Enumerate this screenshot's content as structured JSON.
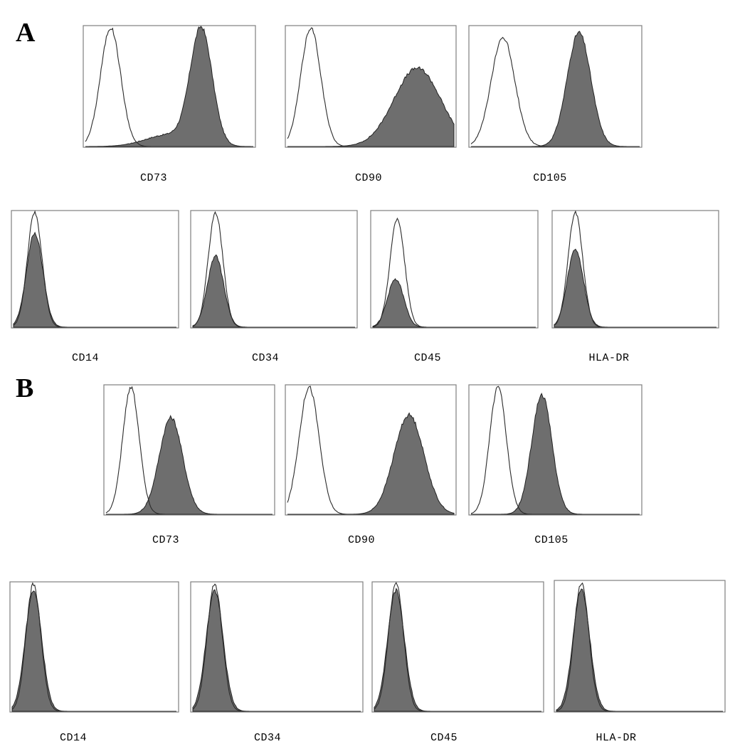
{
  "panels": [
    {
      "letter": "A",
      "chart_data": [
        {
          "type": "area",
          "title": "CD73",
          "xlabel": "CD73",
          "x_range": [
            0,
            1
          ],
          "y_range": [
            0,
            1
          ],
          "series": [
            {
              "role": "control",
              "fill": "none",
              "peaks": [
                {
                  "mu": 0.15,
                  "sigma": 0.06,
                  "height": 1.0
                }
              ]
            },
            {
              "role": "stained",
              "fill": "#6e6e6e",
              "peaks": [
                {
                  "mu": 0.69,
                  "sigma": 0.065,
                  "height": 0.97
                },
                {
                  "mu": 0.5,
                  "sigma": 0.14,
                  "height": 0.1
                }
              ]
            }
          ]
        },
        {
          "type": "area",
          "title": "CD90",
          "xlabel": "CD90",
          "x_range": [
            0,
            1
          ],
          "y_range": [
            0,
            1
          ],
          "series": [
            {
              "role": "control",
              "fill": "none",
              "peaks": [
                {
                  "mu": 0.14,
                  "sigma": 0.06,
                  "height": 1.0
                }
              ]
            },
            {
              "role": "stained",
              "fill": "#6e6e6e",
              "peaks": [
                {
                  "mu": 0.78,
                  "sigma": 0.14,
                  "height": 0.66
                }
              ]
            }
          ]
        },
        {
          "type": "area",
          "title": "CD105",
          "xlabel": "CD105",
          "x_range": [
            0,
            1
          ],
          "y_range": [
            0,
            1
          ],
          "series": [
            {
              "role": "control",
              "fill": "none",
              "peaks": [
                {
                  "mu": 0.19,
                  "sigma": 0.07,
                  "height": 0.92
                }
              ]
            },
            {
              "role": "stained",
              "fill": "#6e6e6e",
              "peaks": [
                {
                  "mu": 0.64,
                  "sigma": 0.07,
                  "height": 0.96
                }
              ]
            }
          ]
        },
        {
          "type": "area",
          "title": "CD14",
          "xlabel": "CD14",
          "x_range": [
            0,
            1
          ],
          "y_range": [
            0,
            1
          ],
          "series": [
            {
              "role": "control",
              "fill": "none",
              "peaks": [
                {
                  "mu": 0.13,
                  "sigma": 0.045,
                  "height": 1.0
                }
              ]
            },
            {
              "role": "stained",
              "fill": "#6e6e6e",
              "peaks": [
                {
                  "mu": 0.13,
                  "sigma": 0.05,
                  "height": 0.82
                }
              ]
            }
          ]
        },
        {
          "type": "area",
          "title": "CD34",
          "xlabel": "CD34",
          "x_range": [
            0,
            1
          ],
          "y_range": [
            0,
            1
          ],
          "series": [
            {
              "role": "control",
              "fill": "none",
              "peaks": [
                {
                  "mu": 0.14,
                  "sigma": 0.045,
                  "height": 1.0
                }
              ]
            },
            {
              "role": "stained",
              "fill": "#6e6e6e",
              "peaks": [
                {
                  "mu": 0.14,
                  "sigma": 0.05,
                  "height": 0.62
                }
              ]
            }
          ]
        },
        {
          "type": "area",
          "title": "CD45",
          "xlabel": "CD45",
          "x_range": [
            0,
            1
          ],
          "y_range": [
            0,
            1
          ],
          "series": [
            {
              "role": "control",
              "fill": "none",
              "peaks": [
                {
                  "mu": 0.15,
                  "sigma": 0.045,
                  "height": 0.95
                }
              ]
            },
            {
              "role": "stained",
              "fill": "#6e6e6e",
              "peaks": [
                {
                  "mu": 0.14,
                  "sigma": 0.05,
                  "height": 0.42
                }
              ]
            }
          ]
        },
        {
          "type": "area",
          "title": "HLA-DR",
          "xlabel": "HLA-DR",
          "x_range": [
            0,
            1
          ],
          "y_range": [
            0,
            1
          ],
          "series": [
            {
              "role": "control",
              "fill": "none",
              "peaks": [
                {
                  "mu": 0.13,
                  "sigma": 0.045,
                  "height": 1.0
                }
              ]
            },
            {
              "role": "stained",
              "fill": "#6e6e6e",
              "peaks": [
                {
                  "mu": 0.13,
                  "sigma": 0.05,
                  "height": 0.68
                }
              ]
            }
          ]
        }
      ]
    },
    {
      "letter": "B",
      "chart_data": [
        {
          "type": "area",
          "title": "CD73",
          "xlabel": "CD73",
          "x_range": [
            0,
            1
          ],
          "y_range": [
            0,
            1
          ],
          "series": [
            {
              "role": "control",
              "fill": "none",
              "peaks": [
                {
                  "mu": 0.15,
                  "sigma": 0.05,
                  "height": 1.0
                }
              ]
            },
            {
              "role": "stained",
              "fill": "#6e6e6e",
              "peaks": [
                {
                  "mu": 0.39,
                  "sigma": 0.07,
                  "height": 0.76
                }
              ]
            }
          ]
        },
        {
          "type": "area",
          "title": "CD90",
          "xlabel": "CD90",
          "x_range": [
            0,
            1
          ],
          "y_range": [
            0,
            1
          ],
          "series": [
            {
              "role": "control",
              "fill": "none",
              "peaks": [
                {
                  "mu": 0.13,
                  "sigma": 0.06,
                  "height": 1.0
                }
              ]
            },
            {
              "role": "stained",
              "fill": "#6e6e6e",
              "peaks": [
                {
                  "mu": 0.73,
                  "sigma": 0.09,
                  "height": 0.78
                }
              ]
            }
          ]
        },
        {
          "type": "area",
          "title": "CD105",
          "xlabel": "CD105",
          "x_range": [
            0,
            1
          ],
          "y_range": [
            0,
            1
          ],
          "series": [
            {
              "role": "control",
              "fill": "none",
              "peaks": [
                {
                  "mu": 0.16,
                  "sigma": 0.05,
                  "height": 1.0
                }
              ]
            },
            {
              "role": "stained",
              "fill": "#6e6e6e",
              "peaks": [
                {
                  "mu": 0.42,
                  "sigma": 0.06,
                  "height": 0.94
                }
              ]
            }
          ]
        },
        {
          "type": "area",
          "title": "CD14",
          "xlabel": "CD14",
          "x_range": [
            0,
            1
          ],
          "y_range": [
            0,
            1
          ],
          "series": [
            {
              "role": "control",
              "fill": "none",
              "peaks": [
                {
                  "mu": 0.13,
                  "sigma": 0.045,
                  "height": 1.0
                }
              ]
            },
            {
              "role": "stained",
              "fill": "#6e6e6e",
              "peaks": [
                {
                  "mu": 0.13,
                  "sigma": 0.05,
                  "height": 0.95
                }
              ]
            }
          ]
        },
        {
          "type": "area",
          "title": "CD34",
          "xlabel": "CD34",
          "x_range": [
            0,
            1
          ],
          "y_range": [
            0,
            1
          ],
          "series": [
            {
              "role": "control",
              "fill": "none",
              "peaks": [
                {
                  "mu": 0.13,
                  "sigma": 0.045,
                  "height": 1.0
                }
              ]
            },
            {
              "role": "stained",
              "fill": "#6e6e6e",
              "peaks": [
                {
                  "mu": 0.13,
                  "sigma": 0.05,
                  "height": 0.95
                }
              ]
            }
          ]
        },
        {
          "type": "area",
          "title": "CD45",
          "xlabel": "CD45",
          "x_range": [
            0,
            1
          ],
          "y_range": [
            0,
            1
          ],
          "series": [
            {
              "role": "control",
              "fill": "none",
              "peaks": [
                {
                  "mu": 0.13,
                  "sigma": 0.045,
                  "height": 1.0
                }
              ]
            },
            {
              "role": "stained",
              "fill": "#6e6e6e",
              "peaks": [
                {
                  "mu": 0.13,
                  "sigma": 0.05,
                  "height": 0.95
                }
              ]
            }
          ]
        },
        {
          "type": "area",
          "title": "HLA-DR",
          "xlabel": "HLA-DR",
          "x_range": [
            0,
            1
          ],
          "y_range": [
            0,
            1
          ],
          "series": [
            {
              "role": "control",
              "fill": "none",
              "peaks": [
                {
                  "mu": 0.15,
                  "sigma": 0.045,
                  "height": 1.0
                }
              ]
            },
            {
              "role": "stained",
              "fill": "#6e6e6e",
              "peaks": [
                {
                  "mu": 0.15,
                  "sigma": 0.05,
                  "height": 0.95
                }
              ]
            }
          ]
        }
      ]
    }
  ]
}
